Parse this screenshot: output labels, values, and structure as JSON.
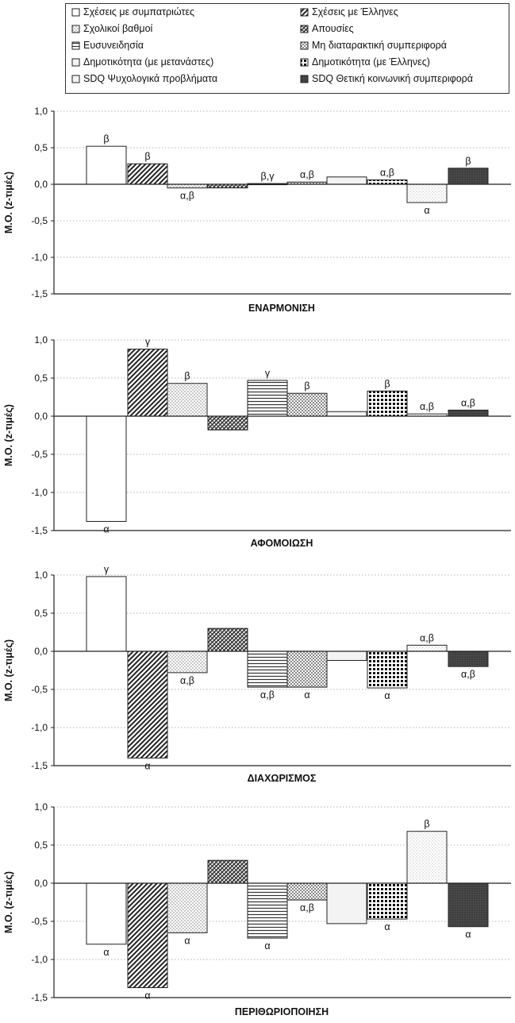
{
  "series": [
    {
      "name": "Σχέσεις με συμπατριώτες",
      "pattern": "white"
    },
    {
      "name": "Σχέσεις με Έλληνες",
      "pattern": "diag"
    },
    {
      "name": "Σχολικοί βαθμοί",
      "pattern": "dots"
    },
    {
      "name": "Απουσίες",
      "pattern": "hatch"
    },
    {
      "name": "Ευσυνειδησία",
      "pattern": "lines"
    },
    {
      "name": "Μη διαταρακτική συμπεριφορά",
      "pattern": "check"
    },
    {
      "name": "Δημοτικότητα (με μετανάστες)",
      "pattern": "light"
    },
    {
      "name": "Δημοτικότητα (με Έλληνες)",
      "pattern": "grid"
    },
    {
      "name": "SDQ Ψυχολογικά προβλήματα",
      "pattern": "sparse"
    },
    {
      "name": "SDQ Θετική κοινωνική συμπεριφορά",
      "pattern": "dark"
    }
  ],
  "ylabel": "Μ.Ο. (z-τιμές)",
  "colors": {
    "axis": "#222222",
    "grid": "#9a9a9a",
    "bar_stroke": "#222222"
  },
  "chart_data": [
    {
      "type": "bar",
      "title": "ΕΝΑΡΜΟΝΙΣΗ",
      "ylabel": "Μ.Ο. (z-τιμές)",
      "ylim": [
        -1.5,
        1.0
      ],
      "yticks": [
        "1,0",
        "0,5",
        "0,0",
        "-0,5",
        "-1,0",
        "-1,5"
      ],
      "grid": true,
      "series": [
        {
          "name": "Σχέσεις με συμπατριώτες",
          "value": 0.52,
          "label": "β"
        },
        {
          "name": "Σχέσεις με Έλληνες",
          "value": 0.28,
          "label": "β"
        },
        {
          "name": "Σχολικοί βαθμοί",
          "value": -0.05,
          "label": "α,β"
        },
        {
          "name": "Απουσίες",
          "value": -0.05,
          "label": ""
        },
        {
          "name": "Ευσυνειδησία",
          "value": 0.01,
          "label": "β,γ"
        },
        {
          "name": "Μη διαταρακτική συμπεριφορά",
          "value": 0.03,
          "label": "α,β"
        },
        {
          "name": "Δημοτικότητα (με μετανάστες)",
          "value": 0.1,
          "label": ""
        },
        {
          "name": "Δημοτικότητα (με Έλληνες)",
          "value": 0.06,
          "label": "α,β"
        },
        {
          "name": "SDQ Ψυχολογικά προβλήματα",
          "value": -0.25,
          "label": "α"
        },
        {
          "name": "SDQ Θετική κοινωνική συμπεριφορά",
          "value": 0.22,
          "label": "β"
        }
      ]
    },
    {
      "type": "bar",
      "title": "ΑΦΟΜΟΙΩΣΗ",
      "ylabel": "Μ.Ο. (z-τιμές)",
      "ylim": [
        -1.5,
        1.0
      ],
      "yticks": [
        "1,0",
        "0,5",
        "0,0",
        "-0,5",
        "-1,0",
        "-1,5"
      ],
      "grid": true,
      "series": [
        {
          "name": "Σχέσεις με συμπατριώτες",
          "value": -1.38,
          "label": "α"
        },
        {
          "name": "Σχέσεις με Έλληνες",
          "value": 0.88,
          "label": "γ"
        },
        {
          "name": "Σχολικοί βαθμοί",
          "value": 0.43,
          "label": "β"
        },
        {
          "name": "Απουσίες",
          "value": -0.18,
          "label": ""
        },
        {
          "name": "Ευσυνειδησία",
          "value": 0.47,
          "label": "γ"
        },
        {
          "name": "Μη διαταρακτική συμπεριφορά",
          "value": 0.3,
          "label": "β"
        },
        {
          "name": "Δημοτικότητα (με μετανάστες)",
          "value": 0.06,
          "label": ""
        },
        {
          "name": "Δημοτικότητα (με Έλληνες)",
          "value": 0.33,
          "label": "β"
        },
        {
          "name": "SDQ Ψυχολογικά προβλήματα",
          "value": 0.03,
          "label": "α,β"
        },
        {
          "name": "SDQ Θετική κοινωνική συμπεριφορά",
          "value": 0.08,
          "label": "α,β"
        }
      ]
    },
    {
      "type": "bar",
      "title": "ΔΙΑΧΩΡΙΣΜΟΣ",
      "ylabel": "Μ.Ο. (z-τιμές)",
      "ylim": [
        -1.5,
        1.0
      ],
      "yticks": [
        "1,0",
        "0,5",
        "0,0",
        "-0,5",
        "-1,0",
        "-1,5"
      ],
      "grid": true,
      "series": [
        {
          "name": "Σχέσεις με συμπατριώτες",
          "value": 0.98,
          "label": "γ"
        },
        {
          "name": "Σχέσεις με Έλληνες",
          "value": -1.4,
          "label": "α"
        },
        {
          "name": "Σχολικοί βαθμοί",
          "value": -0.28,
          "label": "α,β"
        },
        {
          "name": "Απουσίες",
          "value": 0.3,
          "label": ""
        },
        {
          "name": "Ευσυνειδησία",
          "value": -0.47,
          "label": "α,β"
        },
        {
          "name": "Μη διαταρακτική συμπεριφορά",
          "value": -0.47,
          "label": "α"
        },
        {
          "name": "Δημοτικότητα (με μετανάστες)",
          "value": -0.12,
          "label": ""
        },
        {
          "name": "Δημοτικότητα (με Έλληνες)",
          "value": -0.48,
          "label": "α"
        },
        {
          "name": "SDQ Ψυχολογικά προβλήματα",
          "value": 0.08,
          "label": "α,β"
        },
        {
          "name": "SDQ Θετική κοινωνική συμπεριφορά",
          "value": -0.2,
          "label": "α,β"
        }
      ]
    },
    {
      "type": "bar",
      "title": "ΠΕΡΙΘΩΡΙΟΠΟΙΗΣΗ",
      "ylabel": "Μ.Ο. (z-τιμές)",
      "ylim": [
        -1.5,
        1.0
      ],
      "yticks": [
        "1,0",
        "0,5",
        "0,0",
        "-0,5",
        "-1,0",
        "-1,5"
      ],
      "grid": true,
      "series": [
        {
          "name": "Σχέσεις με συμπατριώτες",
          "value": -0.8,
          "label": "α"
        },
        {
          "name": "Σχέσεις με Έλληνες",
          "value": -1.37,
          "label": "α"
        },
        {
          "name": "Σχολικοί βαθμοί",
          "value": -0.65,
          "label": "α"
        },
        {
          "name": "Απουσίες",
          "value": 0.3,
          "label": ""
        },
        {
          "name": "Ευσυνειδησία",
          "value": -0.72,
          "label": "α"
        },
        {
          "name": "Μη διαταρακτική συμπεριφορά",
          "value": -0.22,
          "label": "α,β"
        },
        {
          "name": "Δημοτικότητα (με μετανάστες)",
          "value": -0.53,
          "label": ""
        },
        {
          "name": "Δημοτικότητα (με Έλληνες)",
          "value": -0.47,
          "label": "α"
        },
        {
          "name": "SDQ Ψυχολογικά προβλήματα",
          "value": 0.68,
          "label": "β"
        },
        {
          "name": "SDQ Θετική κοινωνική συμπεριφορά",
          "value": -0.57,
          "label": "α"
        }
      ]
    }
  ]
}
